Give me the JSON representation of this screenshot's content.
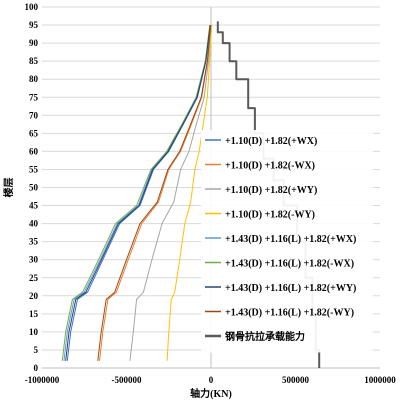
{
  "chart_data": {
    "type": "line",
    "xlabel": "轴力(KN)",
    "ylabel": "楼层",
    "xlim": [
      -1000000,
      1000000
    ],
    "ylim": [
      0,
      100
    ],
    "x_ticks": [
      -1000000,
      -500000,
      0,
      500000,
      1000000
    ],
    "x_tick_labels": [
      "-1000000",
      "-500000",
      "0",
      "500000",
      "1000000"
    ],
    "y_ticks": [
      0,
      5,
      10,
      15,
      20,
      25,
      30,
      35,
      40,
      45,
      50,
      55,
      60,
      65,
      70,
      75,
      80,
      85,
      90,
      95,
      100
    ],
    "y_tick_labels": [
      "0",
      "5",
      "10",
      "15",
      "20",
      "25",
      "30",
      "35",
      "40",
      "45",
      "50",
      "55",
      "60",
      "65",
      "70",
      "75",
      "80",
      "85",
      "90",
      "95",
      "100"
    ],
    "grid": "horizontal",
    "legend_position": "right",
    "series": [
      {
        "name": "+1.10(D) +1.82(+WX)",
        "color": "#4472C4",
        "width": 1,
        "points": [
          [
            -850000,
            2
          ],
          [
            -830000,
            10
          ],
          [
            -790000,
            19
          ],
          [
            -730000,
            21
          ],
          [
            -640000,
            30
          ],
          [
            -540000,
            40
          ],
          [
            -420000,
            45
          ],
          [
            -340000,
            55
          ],
          [
            -250000,
            60
          ],
          [
            -170000,
            67
          ],
          [
            -80000,
            75
          ],
          [
            -30000,
            85
          ],
          [
            -5000,
            95
          ]
        ]
      },
      {
        "name": "+1.10(D) +1.82(-WX)",
        "color": "#ED7D31",
        "width": 1,
        "points": [
          [
            -660000,
            2
          ],
          [
            -640000,
            10
          ],
          [
            -610000,
            19
          ],
          [
            -560000,
            21
          ],
          [
            -490000,
            30
          ],
          [
            -410000,
            40
          ],
          [
            -310000,
            46
          ],
          [
            -250000,
            55
          ],
          [
            -180000,
            60
          ],
          [
            -120000,
            67
          ],
          [
            -55000,
            75
          ],
          [
            -20000,
            85
          ],
          [
            0,
            95
          ]
        ]
      },
      {
        "name": "+1.10(D) +1.82(+WY)",
        "color": "#A5A5A5",
        "width": 1,
        "points": [
          [
            -480000,
            2
          ],
          [
            -460000,
            10
          ],
          [
            -440000,
            19
          ],
          [
            -400000,
            21
          ],
          [
            -350000,
            30
          ],
          [
            -290000,
            40
          ],
          [
            -220000,
            46
          ],
          [
            -180000,
            55
          ],
          [
            -130000,
            60
          ],
          [
            -90000,
            67
          ],
          [
            -40000,
            75
          ],
          [
            -15000,
            85
          ],
          [
            0,
            95
          ]
        ]
      },
      {
        "name": "+1.10(D) +1.82(-WY)",
        "color": "#FFC000",
        "width": 1,
        "points": [
          [
            -260000,
            2
          ],
          [
            -250000,
            10
          ],
          [
            -235000,
            19
          ],
          [
            -215000,
            21
          ],
          [
            -185000,
            30
          ],
          [
            -155000,
            40
          ],
          [
            -120000,
            46
          ],
          [
            -95000,
            55
          ],
          [
            -70000,
            60
          ],
          [
            -48000,
            67
          ],
          [
            -22000,
            75
          ],
          [
            -8000,
            85
          ],
          [
            5000,
            95
          ]
        ]
      },
      {
        "name": "+1.43(D) +1.16(L) +1.82(+WX)",
        "color": "#5B9BD5",
        "width": 1,
        "points": [
          [
            -870000,
            2
          ],
          [
            -850000,
            10
          ],
          [
            -810000,
            19
          ],
          [
            -750000,
            21
          ],
          [
            -655000,
            30
          ],
          [
            -555000,
            40
          ],
          [
            -430000,
            45
          ],
          [
            -350000,
            55
          ],
          [
            -258000,
            60
          ],
          [
            -175000,
            67
          ],
          [
            -85000,
            75
          ],
          [
            -32000,
            85
          ],
          [
            -6000,
            95
          ]
        ]
      },
      {
        "name": "+1.43(D) +1.16(L) +1.82(-WX)",
        "color": "#70AD47",
        "width": 1,
        "points": [
          [
            -880000,
            2
          ],
          [
            -860000,
            10
          ],
          [
            -820000,
            19
          ],
          [
            -760000,
            21
          ],
          [
            -665000,
            30
          ],
          [
            -565000,
            40
          ],
          [
            -440000,
            45
          ],
          [
            -355000,
            55
          ],
          [
            -262000,
            60
          ],
          [
            -178000,
            67
          ],
          [
            -88000,
            75
          ],
          [
            -34000,
            85
          ],
          [
            -7000,
            95
          ]
        ]
      },
      {
        "name": "+1.43(D) +1.16(L) +1.82(+WY)",
        "color": "#264478",
        "width": 1,
        "points": [
          [
            -860000,
            2
          ],
          [
            -840000,
            10
          ],
          [
            -800000,
            19
          ],
          [
            -740000,
            21
          ],
          [
            -648000,
            30
          ],
          [
            -548000,
            40
          ],
          [
            -425000,
            45
          ],
          [
            -345000,
            55
          ],
          [
            -254000,
            60
          ],
          [
            -172000,
            67
          ],
          [
            -83000,
            75
          ],
          [
            -31000,
            85
          ],
          [
            -5000,
            95
          ]
        ]
      },
      {
        "name": "+1.43(D) +1.16(L) +1.82(-WY)",
        "color": "#9E480E",
        "width": 1,
        "points": [
          [
            -670000,
            2
          ],
          [
            -650000,
            10
          ],
          [
            -620000,
            19
          ],
          [
            -570000,
            21
          ],
          [
            -500000,
            30
          ],
          [
            -420000,
            40
          ],
          [
            -318000,
            46
          ],
          [
            -255000,
            55
          ],
          [
            -185000,
            60
          ],
          [
            -125000,
            67
          ],
          [
            -58000,
            75
          ],
          [
            -22000,
            85
          ],
          [
            -2000,
            95
          ]
        ]
      },
      {
        "name": "钢骨抗拉承载能力",
        "color": "#595959",
        "width": 2,
        "points": [
          [
            640000,
            0
          ],
          [
            640000,
            5
          ],
          [
            620000,
            5
          ],
          [
            620000,
            15
          ],
          [
            600000,
            15
          ],
          [
            600000,
            25
          ],
          [
            560000,
            25
          ],
          [
            560000,
            35
          ],
          [
            510000,
            35
          ],
          [
            510000,
            45
          ],
          [
            430000,
            45
          ],
          [
            430000,
            52
          ],
          [
            370000,
            52
          ],
          [
            370000,
            58
          ],
          [
            310000,
            58
          ],
          [
            310000,
            65
          ],
          [
            260000,
            65
          ],
          [
            260000,
            72
          ],
          [
            220000,
            72
          ],
          [
            220000,
            80
          ],
          [
            150000,
            80
          ],
          [
            150000,
            85
          ],
          [
            110000,
            85
          ],
          [
            110000,
            90
          ],
          [
            70000,
            90
          ],
          [
            70000,
            93
          ],
          [
            40000,
            93
          ],
          [
            40000,
            96
          ]
        ]
      }
    ]
  }
}
